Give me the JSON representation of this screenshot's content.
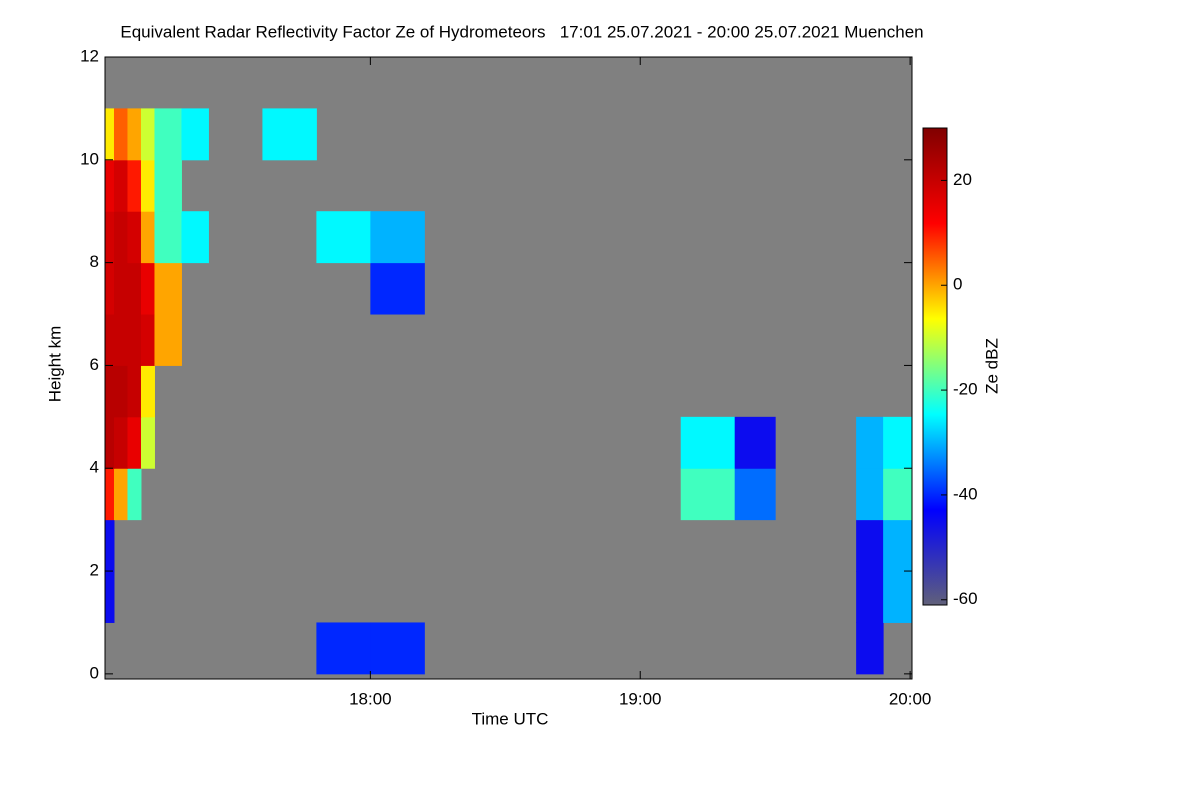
{
  "chart_data": {
    "type": "heatmap",
    "title": "Equivalent Radar Reflectivity Factor Ze of Hydrometeors   17:01 25.07.2021 - 20:00 25.07.2021 Muenchen",
    "xlabel": "Time UTC",
    "ylabel": "Height km",
    "colorbar_label": "Ze dBZ",
    "xlim": [
      17.0167,
      20.007
    ],
    "ylim": [
      -0.1,
      12
    ],
    "xticks": [
      {
        "value": 18,
        "label": "18:00"
      },
      {
        "value": 19,
        "label": "19:00"
      },
      {
        "value": 20,
        "label": "20:00"
      }
    ],
    "yticks": [
      0,
      2,
      4,
      6,
      8,
      10,
      12
    ],
    "zlim": [
      -61,
      30
    ],
    "zticks": [
      -60,
      -40,
      -20,
      0,
      20
    ],
    "colormap": [
      "#60607a",
      "#0000ff",
      "#00ffff",
      "#ffff00",
      "#ff0000",
      "#800000"
    ],
    "background": "#808080",
    "x_edges": [
      17.0167,
      17.05,
      17.1,
      17.15,
      17.2,
      17.3,
      17.4,
      17.6,
      17.8,
      18.0,
      18.2,
      18.5,
      19.0,
      19.15,
      19.35,
      19.5,
      19.8,
      19.9,
      20.007
    ],
    "y_edges": [
      0,
      1,
      2,
      3,
      4,
      5,
      6,
      7,
      8,
      9,
      10,
      11,
      12
    ],
    "z": [
      [
        null,
        null,
        null,
        null,
        null,
        null,
        null,
        null,
        -40,
        -40,
        null,
        null,
        null,
        null,
        null,
        null,
        -45,
        null
      ],
      [
        -45,
        null,
        null,
        null,
        null,
        null,
        null,
        null,
        null,
        null,
        null,
        null,
        null,
        null,
        null,
        null,
        -45,
        -30
      ],
      [
        -45,
        null,
        null,
        null,
        null,
        null,
        null,
        null,
        null,
        null,
        null,
        null,
        null,
        null,
        null,
        null,
        -45,
        -30
      ],
      [
        10,
        0,
        -20,
        null,
        null,
        null,
        null,
        null,
        null,
        null,
        null,
        null,
        null,
        -20,
        -35,
        null,
        -30,
        -20
      ],
      [
        22,
        20,
        15,
        -10,
        null,
        null,
        null,
        null,
        null,
        null,
        null,
        null,
        null,
        -25,
        -45,
        null,
        -30,
        -25
      ],
      [
        22,
        22,
        20,
        -5,
        null,
        null,
        null,
        null,
        null,
        null,
        null,
        null,
        null,
        null,
        null,
        null,
        null,
        null
      ],
      [
        20,
        20,
        20,
        18,
        0,
        null,
        null,
        null,
        null,
        null,
        null,
        null,
        null,
        null,
        null,
        null,
        null,
        null
      ],
      [
        18,
        20,
        20,
        15,
        0,
        null,
        null,
        null,
        null,
        -40,
        null,
        null,
        null,
        null,
        null,
        null,
        null,
        null
      ],
      [
        18,
        20,
        18,
        0,
        -20,
        -25,
        null,
        null,
        -25,
        -30,
        null,
        null,
        null,
        null,
        null,
        null,
        null,
        null
      ],
      [
        15,
        18,
        10,
        -5,
        -20,
        null,
        null,
        null,
        null,
        null,
        null,
        null,
        null,
        null,
        null,
        null,
        null,
        null
      ],
      [
        -5,
        5,
        0,
        -10,
        -20,
        -25,
        null,
        -25,
        null,
        null,
        null,
        null,
        null,
        null,
        null,
        null,
        null,
        null
      ],
      [
        null,
        null,
        null,
        null,
        null,
        null,
        null,
        null,
        null,
        null,
        null,
        null,
        null,
        null,
        null,
        null,
        null,
        null
      ]
    ]
  }
}
